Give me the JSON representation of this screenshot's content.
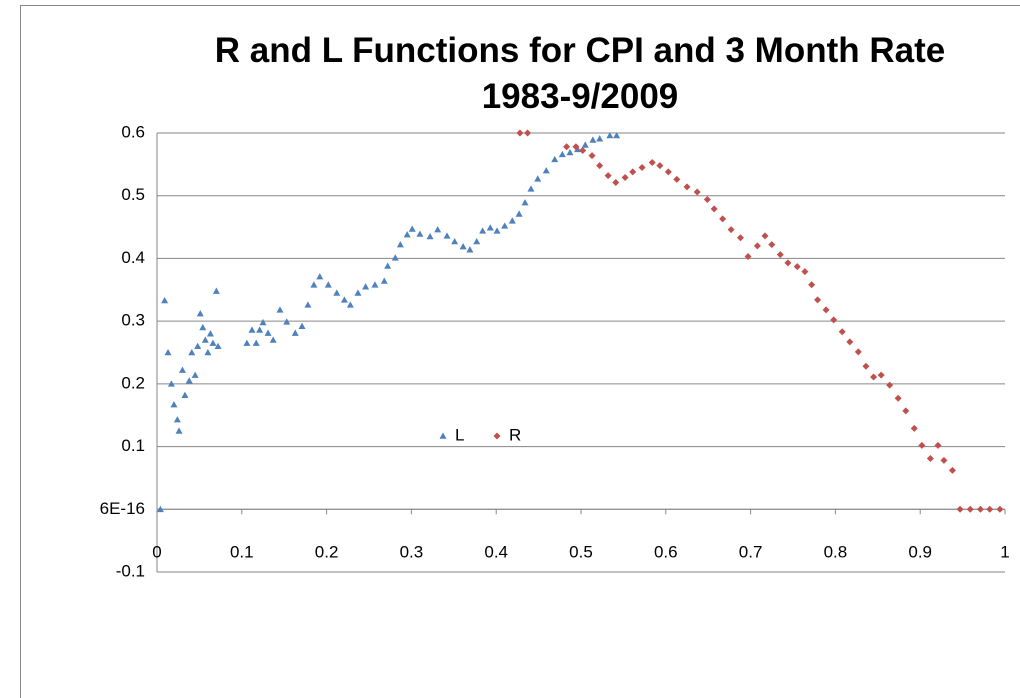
{
  "chart_data": {
    "type": "scatter",
    "title": "R and L Functions for CPI and 3 Month Rate 1983-9/2009",
    "xlim": [
      0,
      1
    ],
    "xticks": [
      0,
      0.1,
      0.2,
      0.3,
      0.4,
      0.5,
      0.6,
      0.7,
      0.8,
      0.9,
      1
    ],
    "ylim": [
      -0.1,
      0.6
    ],
    "yticks": [
      -0.1,
      {
        "value": 6e-16,
        "label": "6E-16"
      },
      0.1,
      0.2,
      0.3,
      0.4,
      0.5,
      0.6
    ],
    "grid": true,
    "legend": "center",
    "series": [
      {
        "name": "L",
        "color": "#4f81bd",
        "marker": "triangle",
        "x": [
          0.004,
          0.009,
          0.013,
          0.017,
          0.02,
          0.024,
          0.026,
          0.03,
          0.033,
          0.038,
          0.041,
          0.045,
          0.048,
          0.051,
          0.054,
          0.057,
          0.06,
          0.063,
          0.066,
          0.07,
          0.072,
          0.106,
          0.112,
          0.117,
          0.121,
          0.125,
          0.131,
          0.137,
          0.145,
          0.153,
          0.163,
          0.171,
          0.178,
          0.185,
          0.192,
          0.202,
          0.212,
          0.221,
          0.228,
          0.237,
          0.246,
          0.257,
          0.268,
          0.272,
          0.281,
          0.287,
          0.295,
          0.301,
          0.31,
          0.322,
          0.331,
          0.342,
          0.351,
          0.361,
          0.369,
          0.377,
          0.384,
          0.393,
          0.401,
          0.41,
          0.419,
          0.427,
          0.434,
          0.441,
          0.449,
          0.459,
          0.469,
          0.478,
          0.487,
          0.496,
          0.505,
          0.514,
          0.522,
          0.534,
          0.542
        ],
        "values": [
          0,
          0.333,
          0.25,
          0.2,
          0.167,
          0.143,
          0.125,
          0.222,
          0.182,
          0.205,
          0.25,
          0.214,
          0.26,
          0.312,
          0.29,
          0.27,
          0.25,
          0.28,
          0.265,
          0.348,
          0.26,
          0.265,
          0.286,
          0.265,
          0.286,
          0.298,
          0.281,
          0.27,
          0.318,
          0.299,
          0.281,
          0.292,
          0.326,
          0.358,
          0.371,
          0.358,
          0.345,
          0.334,
          0.326,
          0.345,
          0.355,
          0.358,
          0.364,
          0.388,
          0.401,
          0.422,
          0.438,
          0.447,
          0.439,
          0.435,
          0.446,
          0.436,
          0.427,
          0.419,
          0.414,
          0.427,
          0.444,
          0.449,
          0.444,
          0.452,
          0.46,
          0.471,
          0.489,
          0.511,
          0.527,
          0.54,
          0.558,
          0.566,
          0.569,
          0.574,
          0.581,
          0.589,
          0.591,
          0.596,
          0.596
        ]
      },
      {
        "name": "R",
        "color": "#c0504d",
        "marker": "diamond",
        "x": [
          0.428,
          0.437,
          0.483,
          0.494,
          0.502,
          0.513,
          0.522,
          0.532,
          0.541,
          0.552,
          0.561,
          0.572,
          0.584,
          0.593,
          0.603,
          0.613,
          0.625,
          0.637,
          0.649,
          0.657,
          0.667,
          0.677,
          0.688,
          0.697,
          0.708,
          0.717,
          0.725,
          0.735,
          0.744,
          0.755,
          0.764,
          0.772,
          0.779,
          0.789,
          0.798,
          0.808,
          0.817,
          0.827,
          0.836,
          0.845,
          0.854,
          0.864,
          0.874,
          0.883,
          0.893,
          0.902,
          0.912,
          0.921,
          0.928,
          0.938,
          0.947,
          0.959,
          0.971,
          0.982,
          0.994
        ],
        "values": [
          0.6,
          0.6,
          0.578,
          0.578,
          0.572,
          0.564,
          0.548,
          0.532,
          0.521,
          0.529,
          0.538,
          0.545,
          0.553,
          0.548,
          0.538,
          0.526,
          0.514,
          0.506,
          0.494,
          0.479,
          0.463,
          0.446,
          0.433,
          0.403,
          0.42,
          0.436,
          0.422,
          0.406,
          0.393,
          0.387,
          0.379,
          0.358,
          0.334,
          0.318,
          0.302,
          0.283,
          0.267,
          0.251,
          0.228,
          0.211,
          0.214,
          0.198,
          0.177,
          0.157,
          0.129,
          0.102,
          0.081,
          0.102,
          0.078,
          0.062,
          0,
          0,
          0,
          0,
          0
        ]
      }
    ]
  }
}
